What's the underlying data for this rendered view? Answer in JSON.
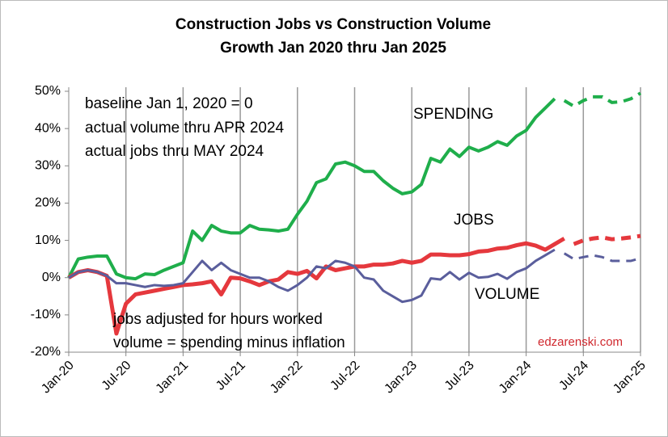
{
  "chart_data": {
    "type": "line",
    "title": "Construction Jobs vs Construction Volume",
    "subtitle": "Growth Jan 2020 thru Jan 2025",
    "categories": [
      "Jan-20",
      null,
      null,
      null,
      null,
      null,
      "Jul-20",
      null,
      null,
      null,
      null,
      null,
      "Jan-21",
      null,
      null,
      null,
      null,
      null,
      "Jul-21",
      null,
      null,
      null,
      null,
      null,
      "Jan-22",
      null,
      null,
      null,
      null,
      null,
      "Jul-22",
      null,
      null,
      null,
      null,
      null,
      "Jan-23",
      null,
      null,
      null,
      null,
      null,
      "Jul-23",
      null,
      null,
      null,
      null,
      null,
      "Jan-24",
      null,
      null,
      null,
      null,
      null,
      "Jul-24",
      null,
      null,
      null,
      null,
      null,
      "Jan-25"
    ],
    "ylim": [
      -20,
      50
    ],
    "yticks": [
      {
        "value": -20,
        "label": "-20%"
      },
      {
        "value": -10,
        "label": "-10%"
      },
      {
        "value": 0,
        "label": "0%"
      },
      {
        "value": 10,
        "label": "10%"
      },
      {
        "value": 20,
        "label": "20%"
      },
      {
        "value": 30,
        "label": "30%"
      },
      {
        "value": 40,
        "label": "40%"
      },
      {
        "value": 50,
        "label": "50%"
      }
    ],
    "grid": "x",
    "series": [
      {
        "name": "SPENDING",
        "color": "#1fae4b",
        "dash_from": 51,
        "values": [
          0,
          5,
          5.5,
          5.8,
          5.8,
          1,
          0,
          -0.3,
          1,
          0.8,
          2,
          3,
          4,
          12.5,
          10,
          14,
          12.5,
          12,
          12,
          14,
          13,
          12.8,
          12.5,
          13,
          17,
          20.5,
          25.5,
          26.5,
          30.5,
          31,
          30,
          28.5,
          28.5,
          26,
          24,
          22.5,
          23,
          25,
          32,
          31,
          34.5,
          32.5,
          35,
          34,
          35,
          36.5,
          35.5,
          38,
          39.5,
          43,
          45.5,
          48,
          47.5,
          46,
          47.5,
          48.5,
          48.5,
          47,
          47.2,
          48,
          49.5
        ]
      },
      {
        "name": "JOBS",
        "color": "#e5383d",
        "dash_from": 52,
        "values": [
          0,
          1.5,
          2,
          1.5,
          0.5,
          -15,
          -7,
          -4.5,
          -4,
          -3.5,
          -3,
          -2.5,
          -2,
          -1.8,
          -1.5,
          -1,
          -4.5,
          0,
          -0.2,
          -1,
          -2,
          -1,
          -0.5,
          1.5,
          1,
          1.8,
          -0.2,
          3,
          2,
          2.5,
          3,
          3,
          3.5,
          3.5,
          3.8,
          4.5,
          4,
          4.5,
          6.2,
          6.2,
          6,
          6,
          6.3,
          7,
          7.2,
          7.8,
          8,
          8.7,
          9.2,
          8.6,
          7.5,
          9,
          10.5,
          9,
          10,
          10.5,
          10.8,
          10.3,
          10.5,
          10.8,
          11.2
        ]
      },
      {
        "name": "VOLUME",
        "color": "#5a5e9c",
        "dash_from": 51,
        "values": [
          0,
          1.5,
          2,
          1.5,
          0.5,
          -1.5,
          -1.5,
          -2,
          -2.5,
          -2,
          -2.2,
          -2,
          -1.5,
          1.5,
          4.5,
          2,
          4,
          2,
          1,
          0,
          0,
          -1,
          -2.5,
          -3.5,
          -2,
          0,
          3,
          2.5,
          4.5,
          4,
          3,
          0,
          -0.5,
          -3.5,
          -5,
          -6.5,
          -6,
          -4.8,
          -0.2,
          -0.5,
          1.5,
          -0.5,
          1.3,
          0,
          0.2,
          1,
          -0.3,
          1.5,
          2.5,
          4.5,
          6,
          7.5,
          6.5,
          5,
          5.5,
          6,
          5.5,
          4.5,
          4.5,
          4.5,
          5.2
        ]
      }
    ],
    "annotations": [
      "baseline Jan 1, 2020 = 0",
      "actual volume thru APR 2024",
      "actual jobs thru MAY 2024",
      "jobs adjusted for hours worked",
      "volume = spending minus inflation",
      "edzarenski.com"
    ]
  }
}
